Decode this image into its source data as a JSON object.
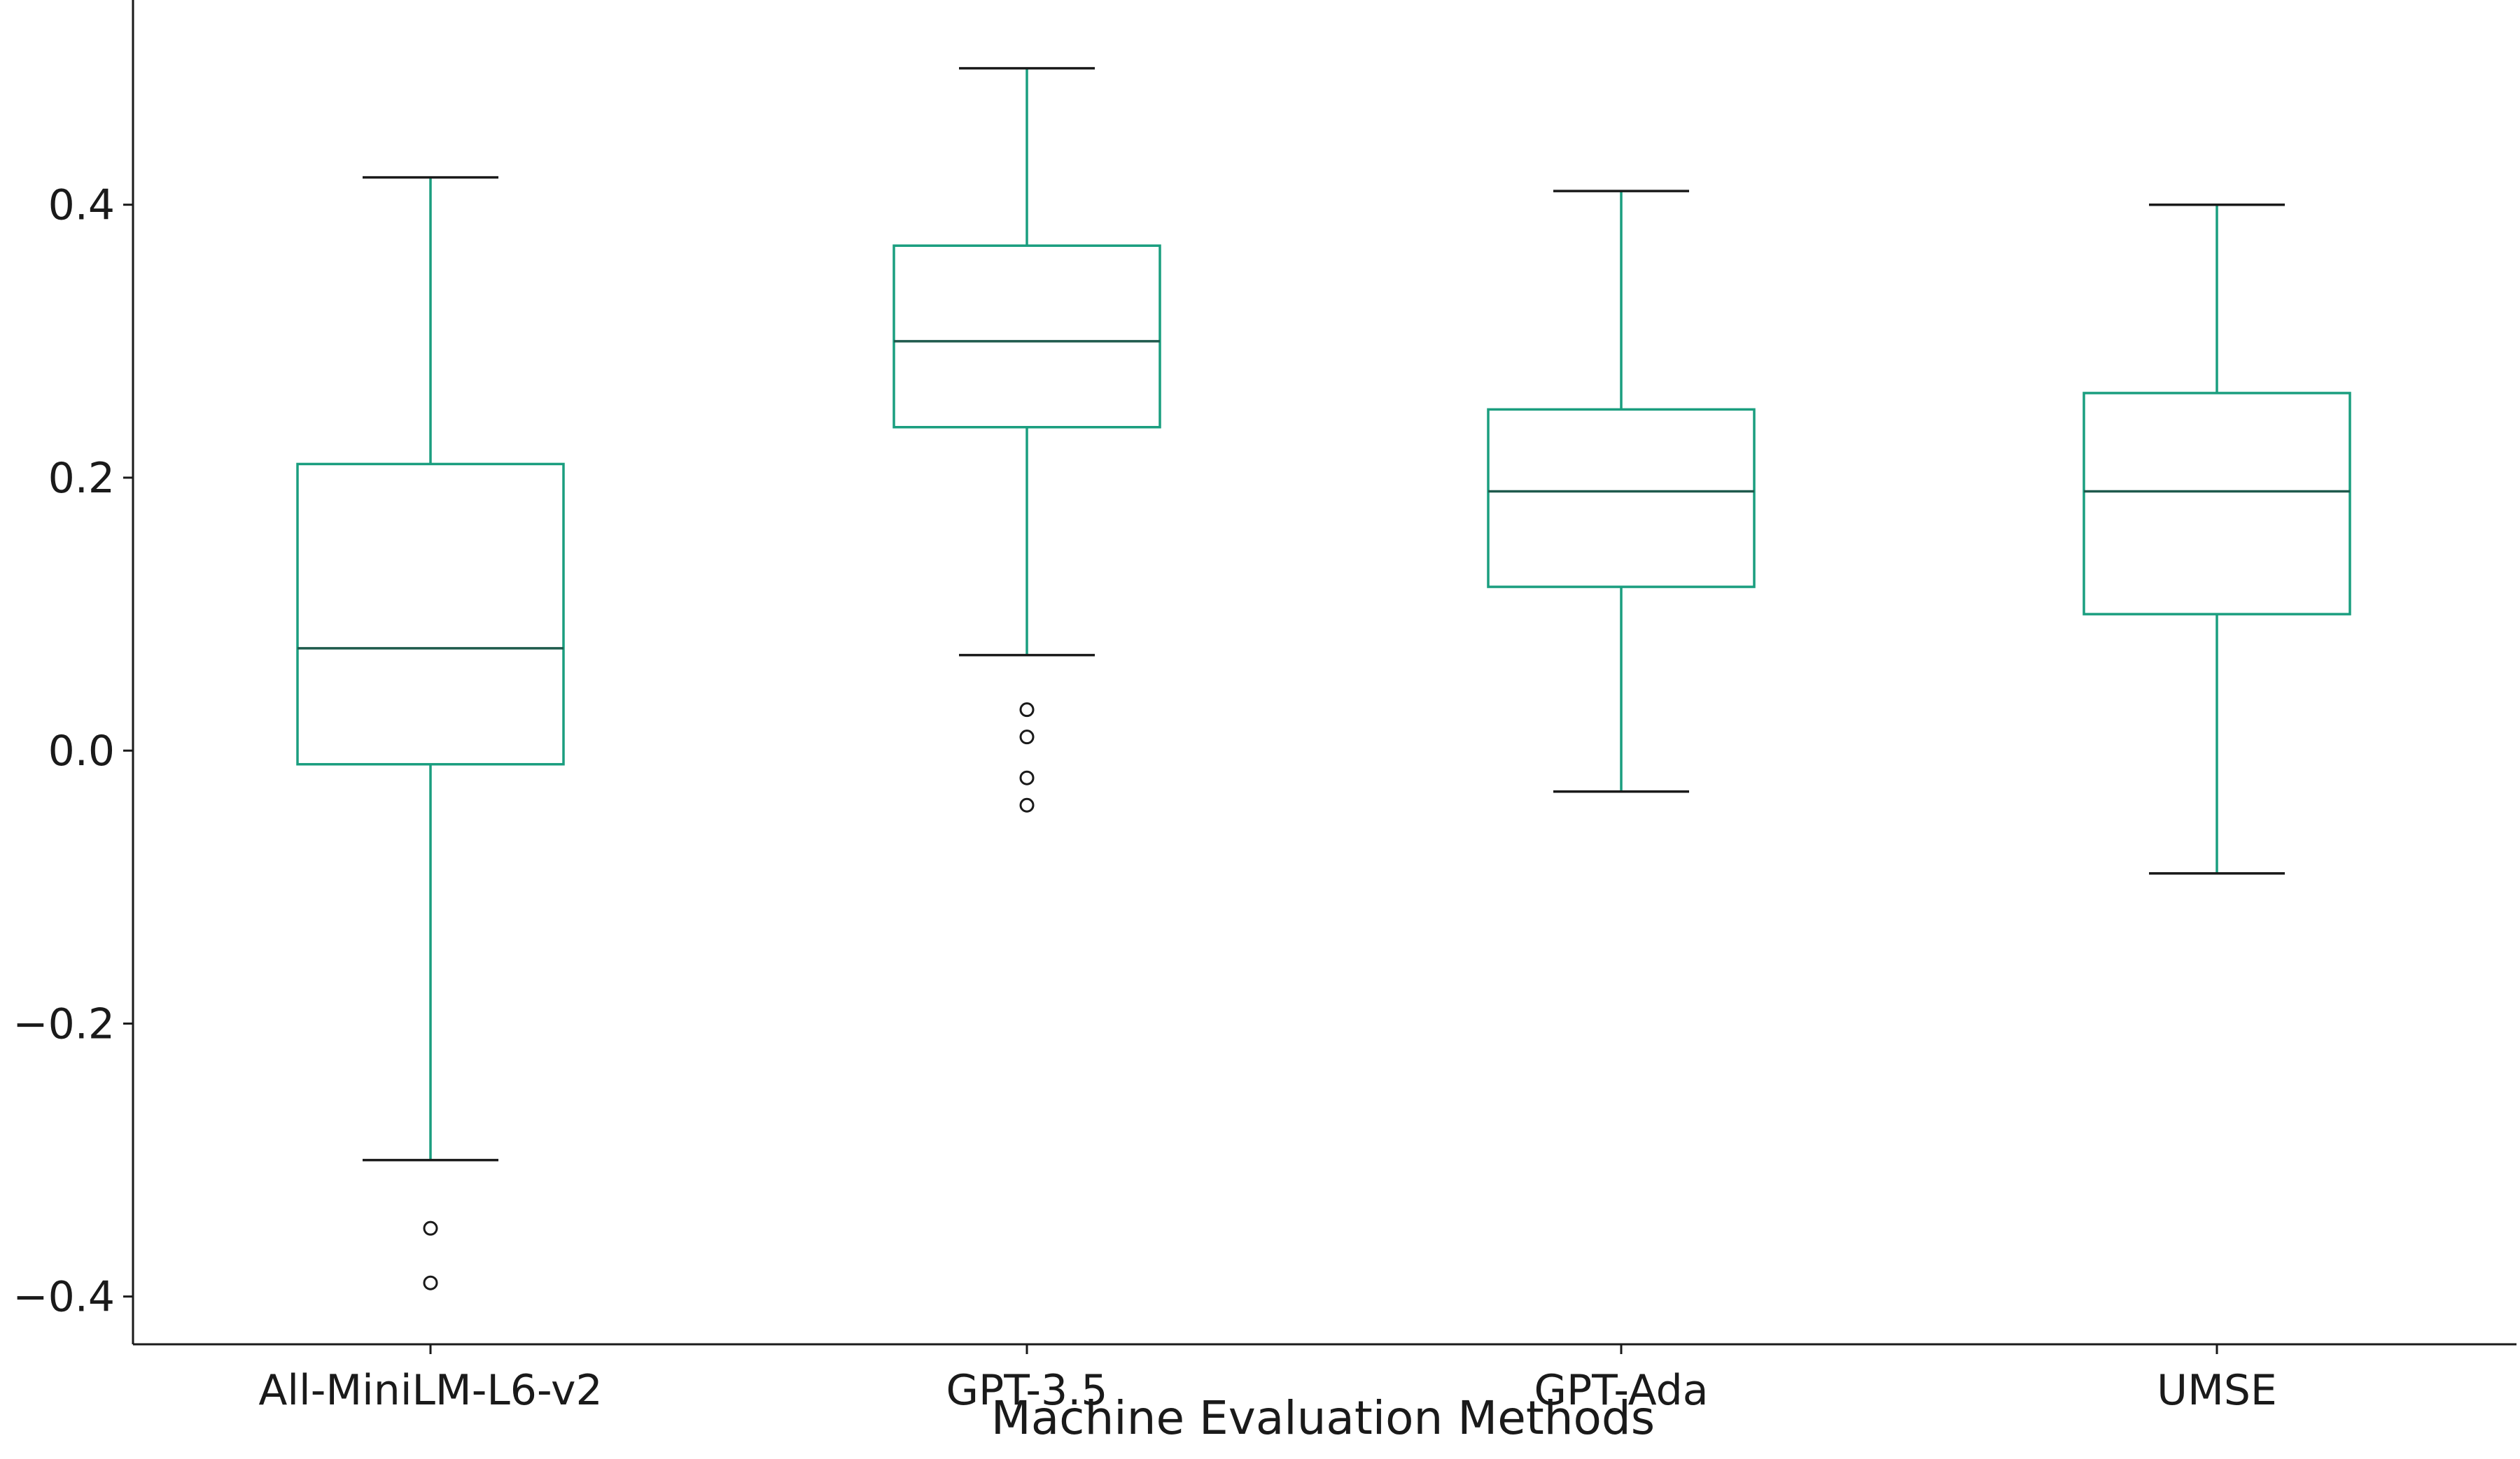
{
  "chart_data": {
    "type": "box",
    "title": "",
    "xlabel": "Machine Evaluation Methods",
    "ylabel": "",
    "ylim": [
      -0.435,
      0.55
    ],
    "yticks": [
      -0.4,
      -0.2,
      0.0,
      0.2,
      0.4
    ],
    "ytick_labels": [
      "−0.4",
      "−0.2",
      "0.0",
      "0.2",
      "0.4"
    ],
    "grid": false,
    "legend": "none",
    "categories": [
      "All-MiniLM-L6-v2",
      "GPT-3.5",
      "GPT-Ada",
      "UMSE"
    ],
    "boxes": [
      {
        "category": "All-MiniLM-L6-v2",
        "whisker_low": -0.3,
        "q1": -0.01,
        "median": 0.075,
        "q3": 0.21,
        "whisker_high": 0.42,
        "outliers": [
          -0.35,
          -0.39
        ]
      },
      {
        "category": "GPT-3.5",
        "whisker_low": 0.07,
        "q1": 0.237,
        "median": 0.3,
        "q3": 0.37,
        "whisker_high": 0.5,
        "outliers": [
          0.03,
          0.01,
          -0.02,
          -0.04
        ]
      },
      {
        "category": "GPT-Ada",
        "whisker_low": -0.03,
        "q1": 0.12,
        "median": 0.19,
        "q3": 0.25,
        "whisker_high": 0.41,
        "outliers": []
      },
      {
        "category": "UMSE",
        "whisker_low": -0.09,
        "q1": 0.1,
        "median": 0.19,
        "q3": 0.262,
        "whisker_high": 0.4,
        "outliers": []
      }
    ],
    "colors": {
      "box": "#1a9e7f",
      "median": "#1e5a4c",
      "cap": "#1a1a1a",
      "outlier": "#1a1a1a",
      "axis": "#1a1a1a"
    }
  }
}
